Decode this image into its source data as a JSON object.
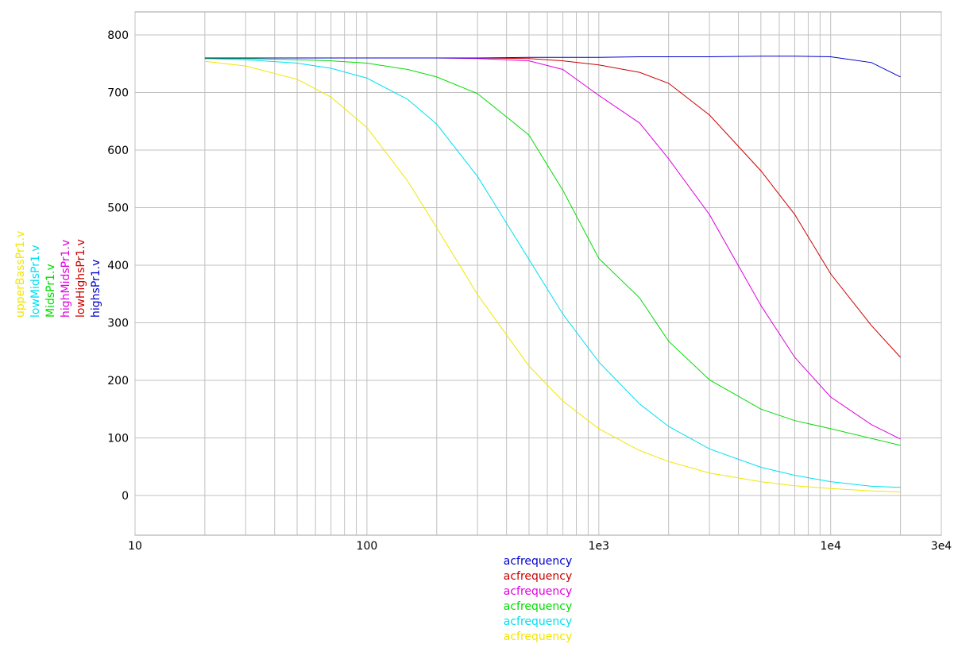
{
  "chart_data": {
    "type": "line",
    "x": [
      20,
      30,
      50,
      70,
      100,
      150,
      200,
      300,
      500,
      700,
      1000,
      1500,
      2000,
      3000,
      5000,
      7000,
      10000,
      15000,
      20000
    ],
    "series": [
      {
        "name": "upperBassPr1.v",
        "x_label": "acfrequency",
        "color": "#f2e600",
        "values": [
          754,
          746,
          723,
          692,
          639,
          546,
          465,
          349,
          225,
          164,
          116,
          78,
          59,
          39,
          24,
          17,
          12,
          8,
          6
        ]
      },
      {
        "name": "lowMidsPr1.v",
        "x_label": "acfrequency",
        "color": "#00e0f0",
        "values": [
          759,
          757,
          751,
          742,
          725,
          688,
          645,
          554,
          410,
          315,
          232,
          159,
          120,
          81,
          49,
          35,
          24,
          16,
          14
        ]
      },
      {
        "name": "MidsPr1.v",
        "x_label": "acfrequency",
        "color": "#00dd00",
        "values": [
          759,
          759,
          757,
          755,
          751,
          740,
          727,
          698,
          626,
          530,
          412,
          343,
          268,
          201,
          150,
          130,
          116,
          99,
          87
        ]
      },
      {
        "name": "highMidsPr1.v",
        "x_label": "acfrequency",
        "color": "#e000e0",
        "values": [
          760,
          760,
          760,
          760,
          760,
          760,
          760,
          759,
          755,
          740,
          695,
          647,
          585,
          488,
          330,
          240,
          171,
          123,
          98
        ]
      },
      {
        "name": "lowHighsPr1.v",
        "x_label": "acfrequency",
        "color": "#cc0000",
        "values": [
          760,
          760,
          760,
          760,
          760,
          760,
          760,
          760,
          759,
          755,
          748,
          735,
          716,
          661,
          564,
          488,
          385,
          295,
          240
        ]
      },
      {
        "name": "highsPr1.v",
        "x_label": "acfrequency",
        "color": "#0000cc",
        "values": [
          760,
          760,
          760,
          760,
          760,
          760,
          760,
          760,
          761,
          761,
          761,
          762,
          762,
          762,
          763,
          763,
          762,
          752,
          727
        ]
      }
    ],
    "xscale": "log",
    "xlim": [
      10,
      30000
    ],
    "xticks": [
      10,
      100,
      {
        "value": 1000,
        "label": "1e3"
      },
      {
        "value": 10000,
        "label": "1e4"
      },
      {
        "value": 30000,
        "label": "3e4"
      }
    ],
    "ylim": [
      -69,
      840
    ],
    "yticks": [
      0,
      100,
      200,
      300,
      400,
      500,
      600,
      700,
      800
    ],
    "grid": true,
    "minor_grid": true
  }
}
